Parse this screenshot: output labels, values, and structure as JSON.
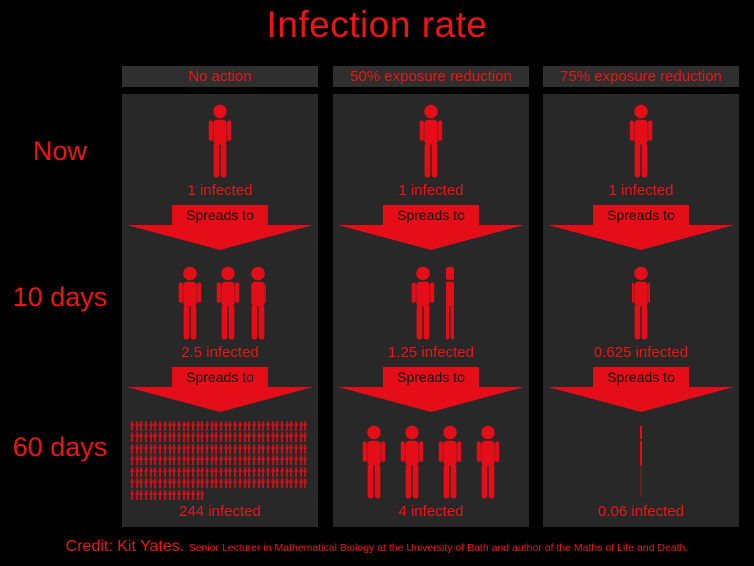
{
  "title": "Infection rate",
  "row_labels": [
    "Now",
    "10 days",
    "60 days"
  ],
  "spreads_label": "Spreads to",
  "credit": {
    "main": "Credit: Kit Yates.",
    "sub": "Senior Lecturer in Mathematical Biology at the University of Bath and author of the Maths of Life and Death."
  },
  "colors": {
    "accent": "#ee1414",
    "figure": "#e40d18",
    "panel_bg": "#282828",
    "header_bg": "#2f2f2f",
    "arrow_text": "#111111",
    "background": "#000000"
  },
  "columns": [
    {
      "header": "No action",
      "cells": [
        {
          "count": 1,
          "size": "lg",
          "label": "1 infected"
        },
        {
          "count": 2.5,
          "size": "lg",
          "label": "2.5 infected"
        },
        {
          "count": 244,
          "size": "tiny",
          "label": "244 infected"
        }
      ]
    },
    {
      "header": "50% exposure reduction",
      "cells": [
        {
          "count": 1,
          "size": "lg",
          "label": "1 infected"
        },
        {
          "count": 1.25,
          "size": "lg",
          "label": "1.25 infected"
        },
        {
          "count": 4,
          "size": "lg",
          "label": "4 infected"
        }
      ]
    },
    {
      "header": "75% exposure reduction",
      "cells": [
        {
          "count": 1,
          "size": "lg",
          "label": "1 infected"
        },
        {
          "count": 0.625,
          "size": "lg",
          "label": "0.625 infected"
        },
        {
          "count": 0.06,
          "size": "lg",
          "label": "0.06 infected"
        }
      ]
    }
  ],
  "chart_data": {
    "type": "table",
    "title": "Infection rate",
    "categories": [
      "Now",
      "10 days",
      "60 days"
    ],
    "series": [
      {
        "name": "No action",
        "values": [
          1,
          2.5,
          244
        ]
      },
      {
        "name": "50% exposure reduction",
        "values": [
          1,
          1.25,
          4
        ]
      },
      {
        "name": "75% exposure reduction",
        "values": [
          1,
          0.625,
          0.06
        ]
      }
    ],
    "unit": "infected"
  }
}
